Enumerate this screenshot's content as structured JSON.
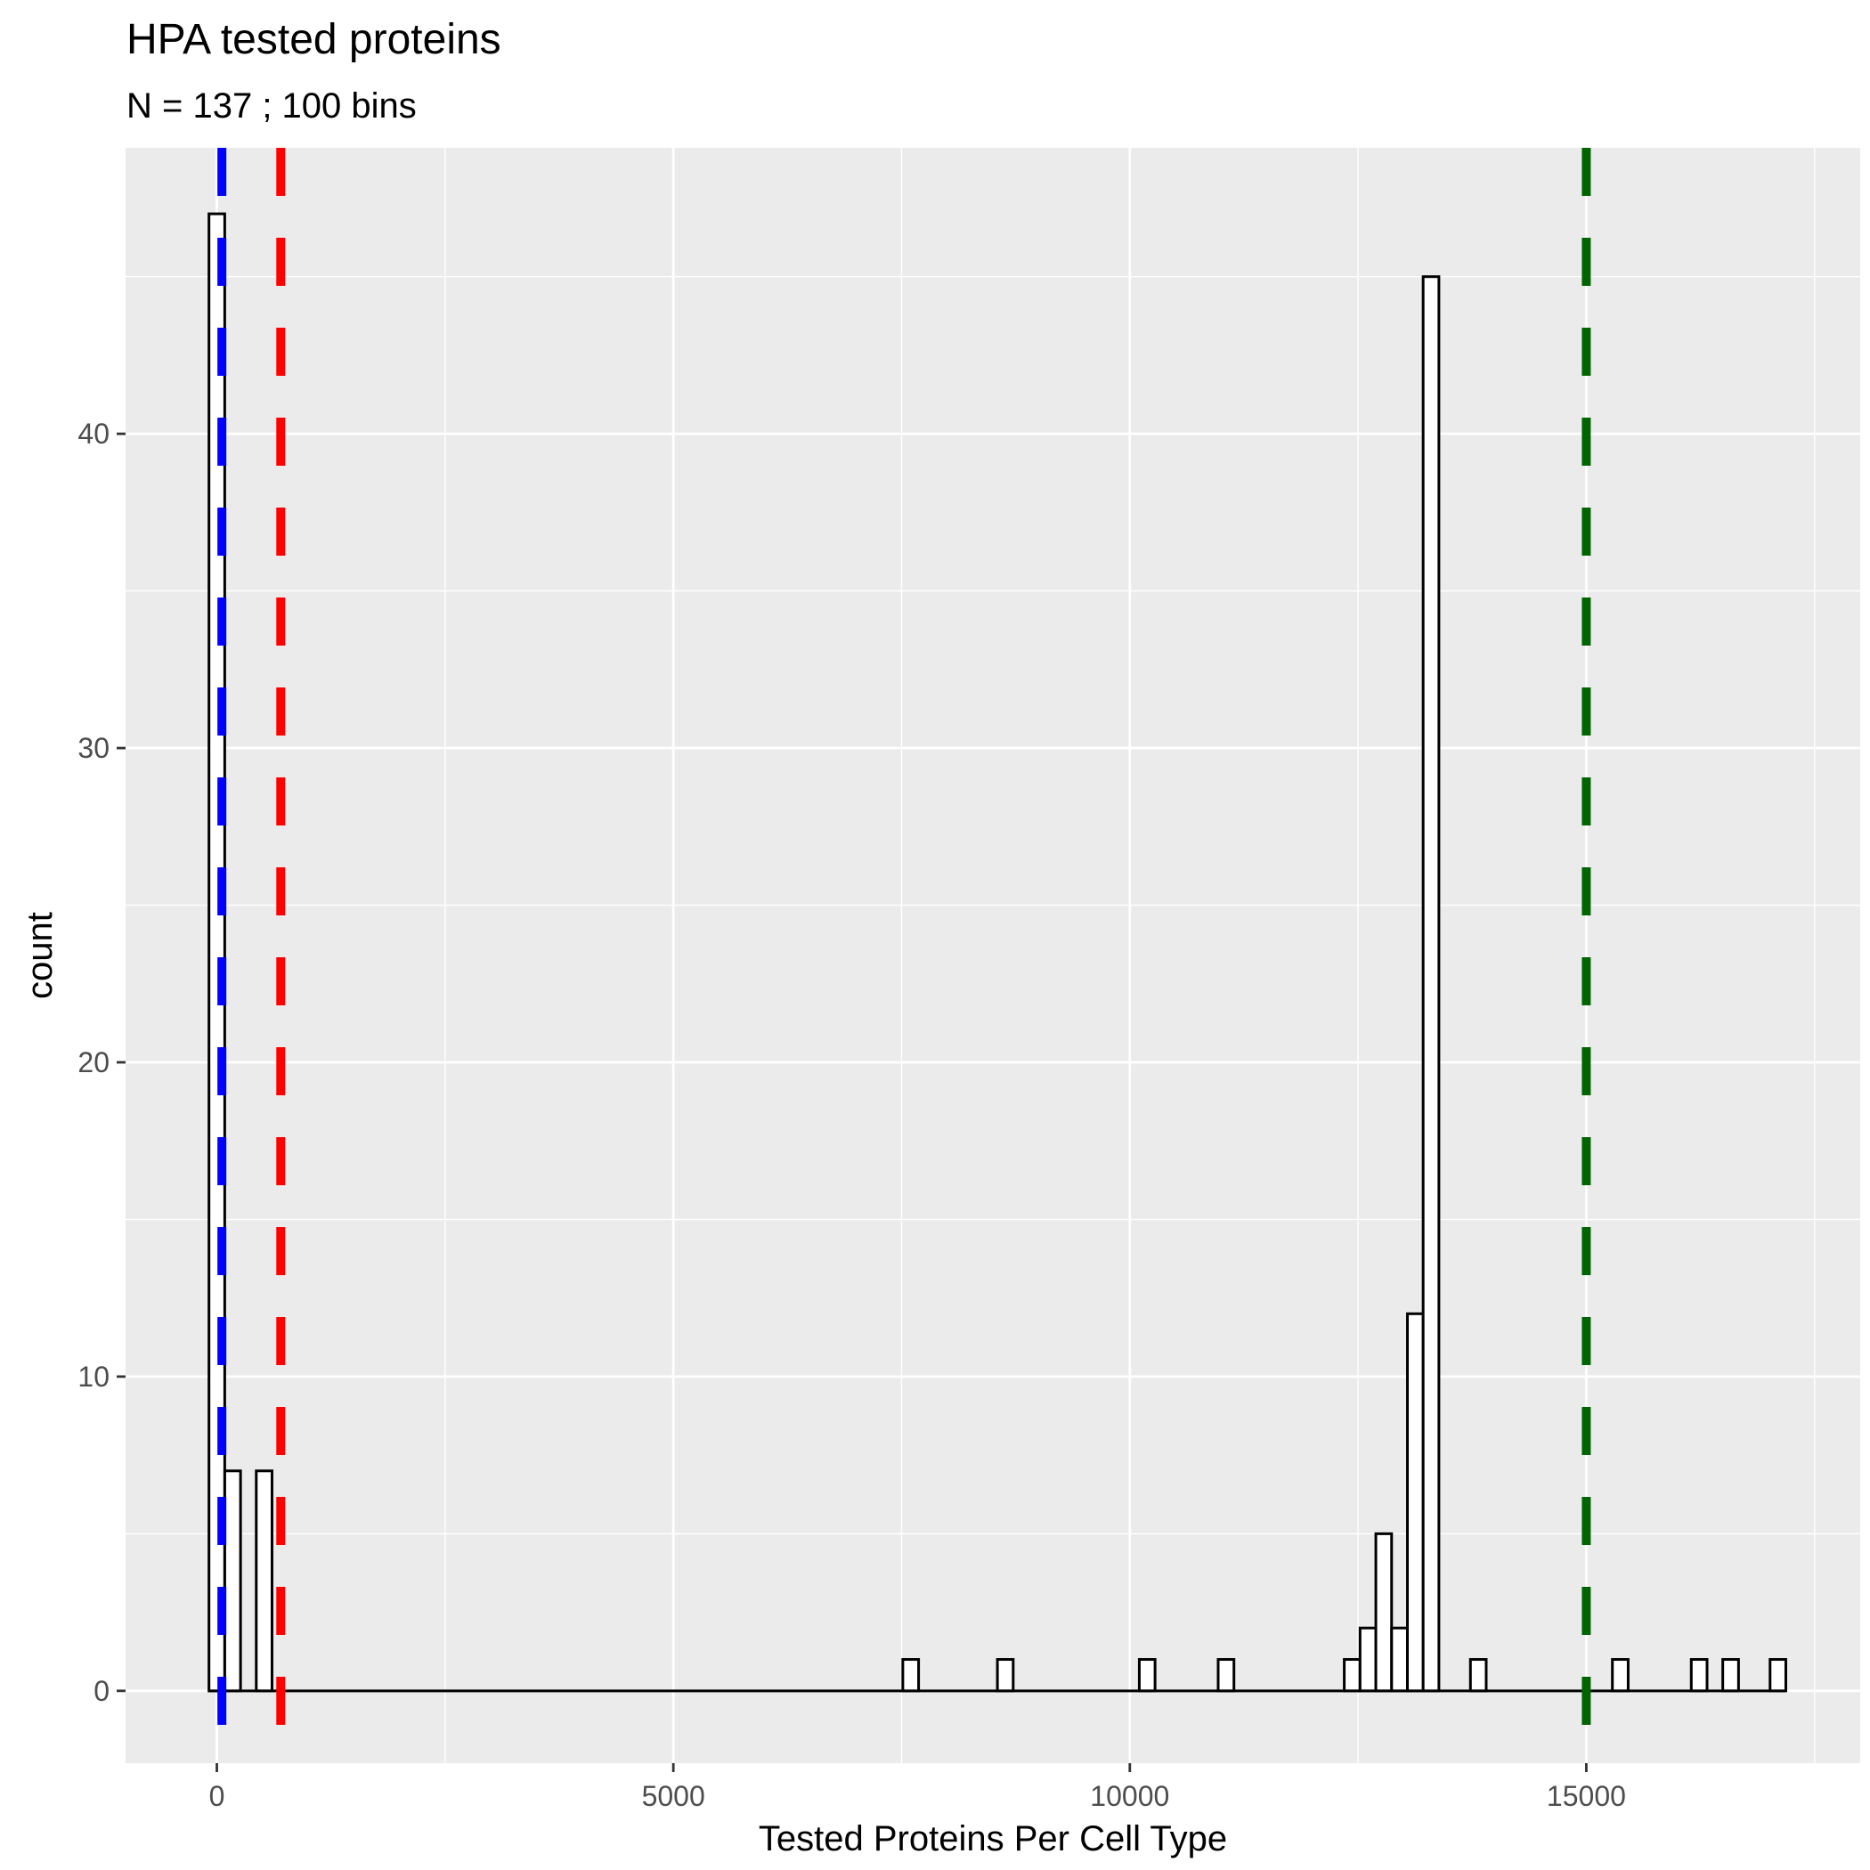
{
  "chart_data": {
    "type": "bar",
    "subtype": "histogram",
    "title": "HPA tested proteins",
    "subtitle": "N =  137 ; 100 bins",
    "xlabel": "Tested Proteins Per Cell Type",
    "ylabel": "count",
    "xlim": [
      -1000,
      18000
    ],
    "ylim": [
      -2.3,
      49.1
    ],
    "x_ticks": [
      0,
      5000,
      10000,
      15000
    ],
    "x_tick_labels": [
      "0",
      "5000",
      "10000",
      "15000"
    ],
    "y_ticks": [
      0,
      10,
      20,
      30,
      40
    ],
    "y_tick_labels": [
      "0",
      "10",
      "20",
      "30",
      "40"
    ],
    "bin_range": [
      -90,
      17180
    ],
    "bin_width": 172.7,
    "bins": [
      {
        "x": 0,
        "count": 47
      },
      {
        "x": 173,
        "count": 7
      },
      {
        "x": 518,
        "count": 7
      },
      {
        "x": 7600,
        "count": 1
      },
      {
        "x": 8636,
        "count": 1
      },
      {
        "x": 10190,
        "count": 1
      },
      {
        "x": 11054,
        "count": 1
      },
      {
        "x": 12435,
        "count": 1
      },
      {
        "x": 12608,
        "count": 2
      },
      {
        "x": 12781,
        "count": 5
      },
      {
        "x": 12954,
        "count": 2
      },
      {
        "x": 13127,
        "count": 12
      },
      {
        "x": 13299,
        "count": 45
      },
      {
        "x": 13817,
        "count": 1
      },
      {
        "x": 15372,
        "count": 1
      },
      {
        "x": 16236,
        "count": 1
      },
      {
        "x": 16581,
        "count": 1
      },
      {
        "x": 17099,
        "count": 1
      }
    ],
    "vlines": [
      {
        "name": "blue",
        "x": 55,
        "color": "#0000ff",
        "style": "dashed"
      },
      {
        "name": "red",
        "x": 700,
        "color": "#ff0000",
        "style": "dashed"
      },
      {
        "name": "green",
        "x": 15000,
        "color": "#006400",
        "style": "dashed"
      }
    ],
    "colors": {
      "panel_background": "#ebebeb",
      "grid": "#ffffff",
      "bar_fill": "#ffffff",
      "bar_outline": "#000000"
    },
    "grid": true,
    "legend": "none"
  }
}
